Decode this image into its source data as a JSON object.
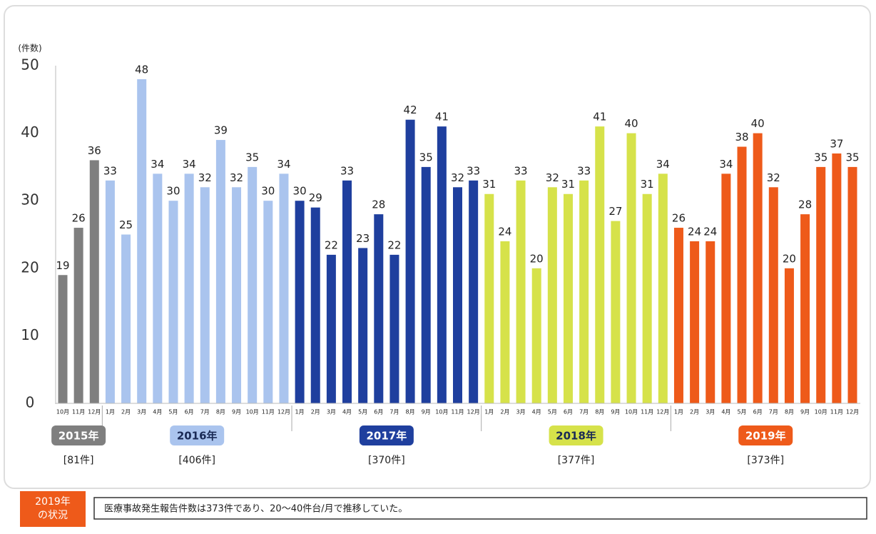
{
  "chart_data": {
    "type": "bar",
    "y_label": "(件数)",
    "ylim": [
      0,
      50
    ],
    "yticks": [
      0,
      10,
      20,
      30,
      40,
      50
    ],
    "series": [
      {
        "name": "2015年",
        "total": "[81件]",
        "color": "#7f7f7f",
        "categories": [
          "10月",
          "11月",
          "12月"
        ],
        "values": [
          19,
          26,
          36
        ]
      },
      {
        "name": "2016年",
        "total": "[406件]",
        "color": "#aac4ee",
        "categories": [
          "1月",
          "2月",
          "3月",
          "4月",
          "5月",
          "6月",
          "7月",
          "8月",
          "9月",
          "10月",
          "11月",
          "12月"
        ],
        "values": [
          33,
          25,
          48,
          34,
          30,
          34,
          32,
          39,
          32,
          35,
          30,
          34
        ]
      },
      {
        "name": "2017年",
        "total": "[370件]",
        "color": "#1f3f9e",
        "categories": [
          "1月",
          "2月",
          "3月",
          "4月",
          "5月",
          "6月",
          "7月",
          "8月",
          "9月",
          "10月",
          "11月",
          "12月"
        ],
        "values": [
          30,
          29,
          22,
          33,
          23,
          28,
          22,
          42,
          35,
          41,
          32,
          33
        ]
      },
      {
        "name": "2018年",
        "total": "[377件]",
        "color": "#d6e24a",
        "categories": [
          "1月",
          "2月",
          "3月",
          "4月",
          "5月",
          "6月",
          "7月",
          "8月",
          "9月",
          "10月",
          "11月",
          "12月"
        ],
        "values": [
          31,
          24,
          33,
          20,
          32,
          31,
          33,
          41,
          27,
          40,
          31,
          34
        ]
      },
      {
        "name": "2019年",
        "total": "[373件]",
        "color": "#ee5a1a",
        "categories": [
          "1月",
          "2月",
          "3月",
          "4月",
          "5月",
          "6月",
          "7月",
          "8月",
          "9月",
          "10月",
          "11月",
          "12月"
        ],
        "values": [
          26,
          24,
          24,
          34,
          38,
          40,
          32,
          20,
          28,
          35,
          37,
          35
        ]
      }
    ]
  },
  "note": {
    "label_lines": [
      "2019年",
      "の状況"
    ],
    "text": "医療事故発生報告件数は373件であり、20〜40件台/月で推移していた。"
  }
}
